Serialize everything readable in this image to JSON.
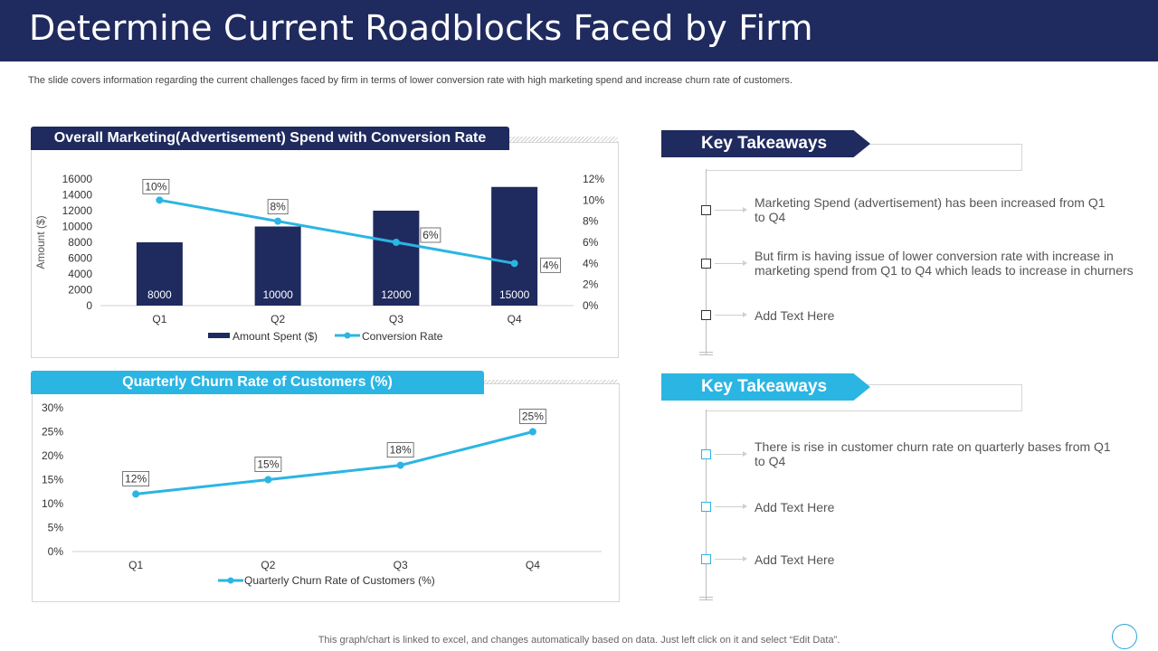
{
  "title": "Determine Current Roadblocks Faced by Firm",
  "subtitle": "The slide covers information regarding the current challenges faced by firm in terms of lower conversion rate with high marketing spend and increase churn rate of customers.",
  "colors": {
    "navy": "#1f2a5e",
    "cyan": "#2bb5e3",
    "bar": "#1f2a5e"
  },
  "chart_data": [
    {
      "type": "bar",
      "title": "Overall Marketing(Advertisement) Spend with Conversion Rate",
      "categories": [
        "Q1",
        "Q2",
        "Q3",
        "Q4"
      ],
      "ylabel": "Amount ($)",
      "ylim": [
        0,
        16000
      ],
      "yticks": [
        "0",
        "2000",
        "4000",
        "6000",
        "8000",
        "10000",
        "12000",
        "14000",
        "16000"
      ],
      "y2lim": [
        0,
        12
      ],
      "y2ticks": [
        "0%",
        "2%",
        "4%",
        "6%",
        "8%",
        "10%",
        "12%"
      ],
      "series": [
        {
          "name": "Amount Spent ($)",
          "type": "bar",
          "values": [
            8000,
            10000,
            12000,
            15000
          ],
          "labels": [
            "8000",
            "10000",
            "12000",
            "15000"
          ]
        },
        {
          "name": "Conversion Rate",
          "type": "line",
          "axis": "secondary",
          "values": [
            10,
            8,
            6,
            4
          ],
          "labels": [
            "10%",
            "8%",
            "6%",
            "4%"
          ]
        }
      ],
      "legend": [
        "Amount Spent ($)",
        "Conversion Rate"
      ]
    },
    {
      "type": "line",
      "title": "Quarterly Churn Rate of Customers (%)",
      "categories": [
        "Q1",
        "Q2",
        "Q3",
        "Q4"
      ],
      "ylim": [
        0,
        30
      ],
      "yticks": [
        "0%",
        "5%",
        "10%",
        "15%",
        "20%",
        "25%",
        "30%"
      ],
      "series": [
        {
          "name": "Quarterly Churn Rate of Customers (%)",
          "values": [
            12,
            15,
            18,
            25
          ],
          "labels": [
            "12%",
            "15%",
            "18%",
            "25%"
          ]
        }
      ],
      "legend": [
        "Quarterly Churn Rate of Customers (%)"
      ]
    }
  ],
  "takeaways": [
    {
      "heading": "Key Takeaways",
      "items": [
        "Marketing Spend (advertisement) has been increased from Q1 to Q4",
        "But firm is having issue of lower conversion rate with increase in marketing spend from Q1 to Q4 which leads to increase in churners",
        "Add Text Here"
      ]
    },
    {
      "heading": "Key Takeaways",
      "items": [
        "There is rise in customer churn rate on quarterly bases from Q1 to Q4",
        "Add Text Here",
        "Add Text Here"
      ]
    }
  ],
  "footer": "This graph/chart is linked to excel,  and changes automatically based on data. Just left click on it and select “Edit Data”."
}
